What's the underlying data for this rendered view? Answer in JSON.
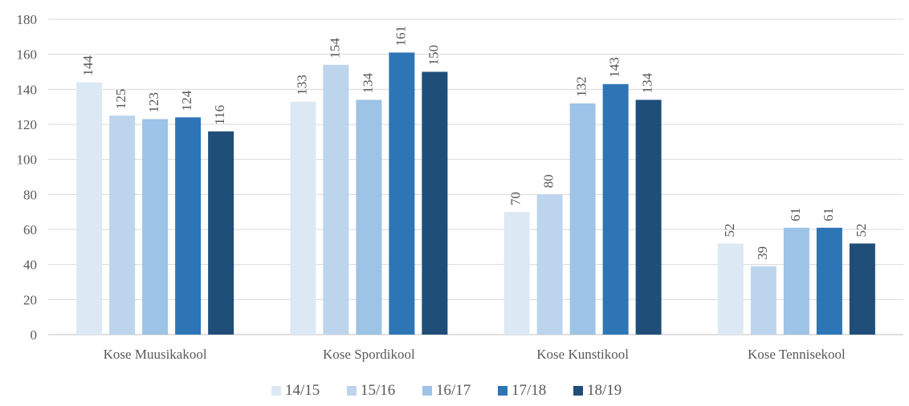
{
  "chart_data": {
    "type": "bar",
    "title": "",
    "xlabel": "",
    "ylabel": "",
    "ylim": [
      0,
      180
    ],
    "yticks": [
      0,
      20,
      40,
      60,
      80,
      100,
      120,
      140,
      160,
      180
    ],
    "grid": true,
    "legend_position": "bottom",
    "categories": [
      "Kose Muusikakool",
      "Kose Spordikool",
      "Kose Kunstikool",
      "Kose Tennisekool"
    ],
    "series": [
      {
        "name": "14/15",
        "color": "#dce9f5",
        "values": [
          144,
          133,
          70,
          52
        ]
      },
      {
        "name": "15/16",
        "color": "#bcd5ec",
        "values": [
          125,
          154,
          80,
          39
        ]
      },
      {
        "name": "16/17",
        "color": "#9dc3e6",
        "values": [
          123,
          134,
          132,
          61
        ]
      },
      {
        "name": "17/18",
        "color": "#2e75b6",
        "values": [
          124,
          161,
          143,
          61
        ]
      },
      {
        "name": "18/19",
        "color": "#1f4e79",
        "values": [
          116,
          150,
          134,
          52
        ]
      }
    ]
  }
}
